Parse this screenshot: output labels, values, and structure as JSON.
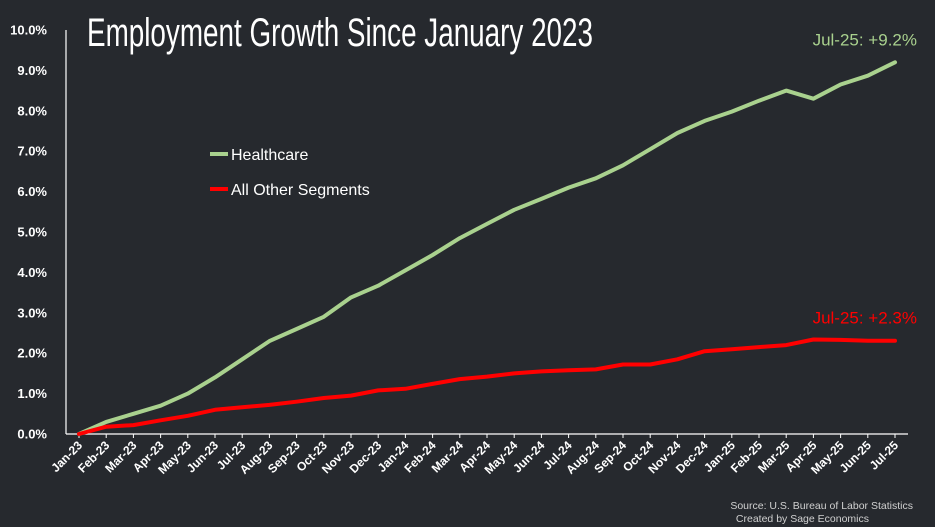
{
  "chart_data": {
    "type": "line",
    "title": "Employment Growth Since January 2023",
    "x": [
      "Jan-23",
      "Feb-23",
      "Mar-23",
      "Apr-23",
      "May-23",
      "Jun-23",
      "Jul-23",
      "Aug-23",
      "Sep-23",
      "Oct-23",
      "Nov-23",
      "Dec-23",
      "Jan-24",
      "Feb-24",
      "Mar-24",
      "Apr-24",
      "May-24",
      "Jun-24",
      "Jul-24",
      "Aug-24",
      "Sep-24",
      "Oct-24",
      "Nov-24",
      "Dec-24",
      "Jan-25",
      "Feb-25",
      "Mar-25",
      "Apr-25",
      "May-25",
      "Jun-25",
      "Jul-25"
    ],
    "ylim": [
      0,
      10
    ],
    "yticks": [
      "0.0%",
      "1.0%",
      "2.0%",
      "3.0%",
      "4.0%",
      "5.0%",
      "6.0%",
      "7.0%",
      "8.0%",
      "9.0%",
      "10.0%"
    ],
    "grid": false,
    "legend_position": "upper-left",
    "series": [
      {
        "name": "Healthcare",
        "color": "#a9d18e",
        "values": [
          0.0,
          0.3,
          0.5,
          0.7,
          1.0,
          1.4,
          1.85,
          2.3,
          2.6,
          2.9,
          3.38,
          3.67,
          4.05,
          4.43,
          4.85,
          5.2,
          5.55,
          5.82,
          6.1,
          6.33,
          6.65,
          7.05,
          7.45,
          7.75,
          7.98,
          8.25,
          8.5,
          8.3,
          8.65,
          8.87,
          9.2
        ]
      },
      {
        "name": "All Other Segments",
        "color": "#ff0000",
        "values": [
          0.0,
          0.18,
          0.22,
          0.34,
          0.45,
          0.6,
          0.66,
          0.72,
          0.8,
          0.89,
          0.95,
          1.08,
          1.12,
          1.24,
          1.36,
          1.42,
          1.5,
          1.55,
          1.58,
          1.6,
          1.72,
          1.72,
          1.85,
          2.05,
          2.1,
          2.15,
          2.2,
          2.34,
          2.33,
          2.31,
          2.31
        ]
      }
    ],
    "annotations": [
      {
        "text": "Jul-25: +9.2%",
        "series": 0,
        "color": "#a9d18e"
      },
      {
        "text": "Jul-25: +2.3%",
        "series": 1,
        "color": "#ff0000"
      }
    ],
    "source_lines": [
      "Source: U.S. Bureau of Labor Statistics",
      "Created by Sage Economics"
    ]
  }
}
